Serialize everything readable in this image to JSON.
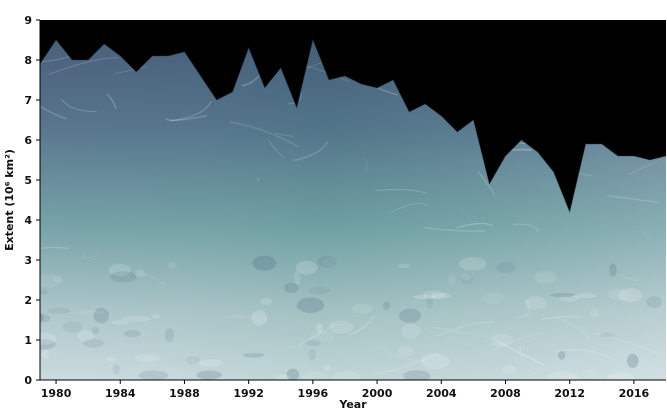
{
  "chart_data": {
    "type": "area",
    "title": "",
    "xlabel": "Year",
    "ylabel": "Extent (10⁶ km²)",
    "xlim": [
      1979,
      2018
    ],
    "ylim": [
      0,
      9
    ],
    "grid": false,
    "x_ticks": [
      1980,
      1984,
      1988,
      1992,
      1996,
      2000,
      2004,
      2008,
      2012,
      2016
    ],
    "y_ticks": [
      0,
      1,
      2,
      3,
      4,
      5,
      6,
      7,
      8,
      9
    ],
    "plot_background": "#000000",
    "fill_colors": {
      "top": "#3f5573",
      "middle": "#6f9ea3",
      "bottom": "#c9d9de"
    },
    "series": [
      {
        "x": [
          1979,
          1980,
          1981,
          1982,
          1983,
          1984,
          1985,
          1986,
          1987,
          1988,
          1989,
          1990,
          1991,
          1992,
          1993,
          1994,
          1995,
          1996,
          1997,
          1998,
          1999,
          2000,
          2001,
          2002,
          2003,
          2004,
          2005,
          2006,
          2007,
          2008,
          2009,
          2010,
          2011,
          2012,
          2013,
          2014,
          2015,
          2016,
          2017,
          2018
        ],
        "values": [
          7.9,
          8.5,
          8.0,
          8.0,
          8.4,
          8.1,
          7.7,
          8.1,
          8.1,
          8.2,
          7.6,
          7.0,
          7.2,
          8.3,
          7.3,
          7.8,
          6.8,
          8.5,
          7.5,
          7.6,
          7.4,
          7.3,
          7.5,
          6.7,
          6.9,
          6.6,
          6.2,
          6.5,
          4.9,
          5.6,
          6.0,
          5.7,
          5.2,
          4.2,
          5.9,
          5.9,
          5.6,
          5.6,
          5.5,
          5.6
        ]
      }
    ]
  }
}
